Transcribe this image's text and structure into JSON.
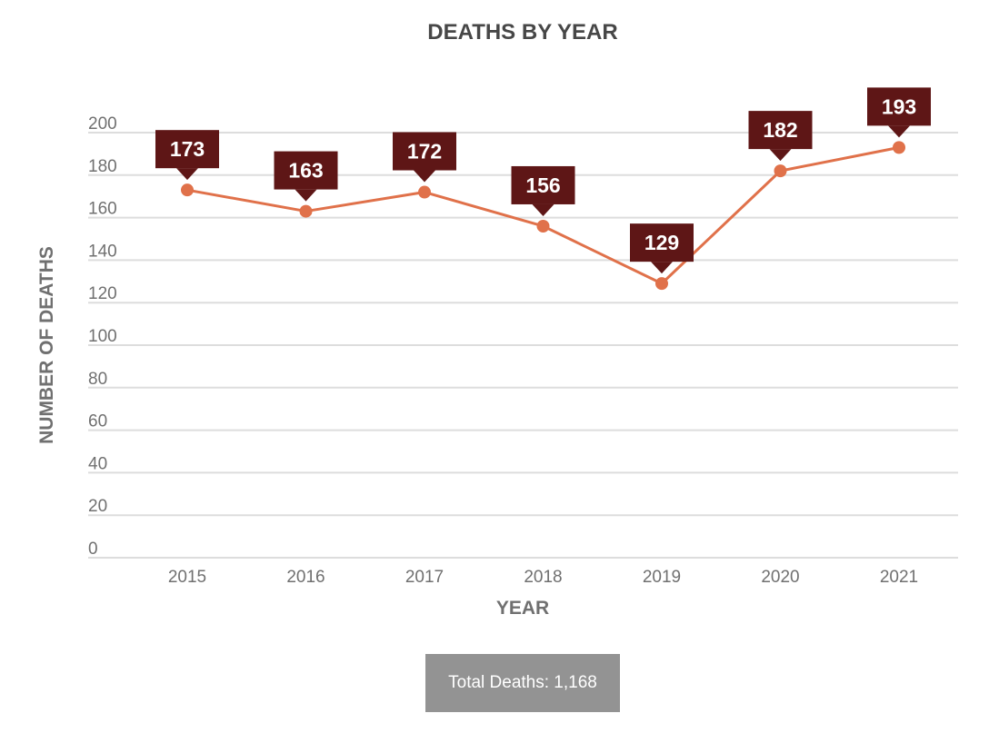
{
  "chart_data": {
    "type": "line",
    "title": "DEATHS BY YEAR",
    "xlabel": "YEAR",
    "ylabel": "NUMBER OF DEATHS",
    "categories": [
      "2015",
      "2016",
      "2017",
      "2018",
      "2019",
      "2020",
      "2021"
    ],
    "values": [
      173,
      163,
      172,
      156,
      129,
      182,
      193
    ],
    "y_ticks": [
      0,
      20,
      40,
      60,
      80,
      100,
      120,
      140,
      160,
      180,
      200
    ],
    "ylim": [
      0,
      200
    ],
    "grid": true,
    "legend": "none",
    "data_labels": true
  },
  "summary": {
    "total_label": "Total Deaths: 1,168"
  },
  "colors": {
    "line": "#e0714a",
    "label_bg": "#5e1616",
    "grid": "#dddddd",
    "summary_bg": "#939393"
  }
}
